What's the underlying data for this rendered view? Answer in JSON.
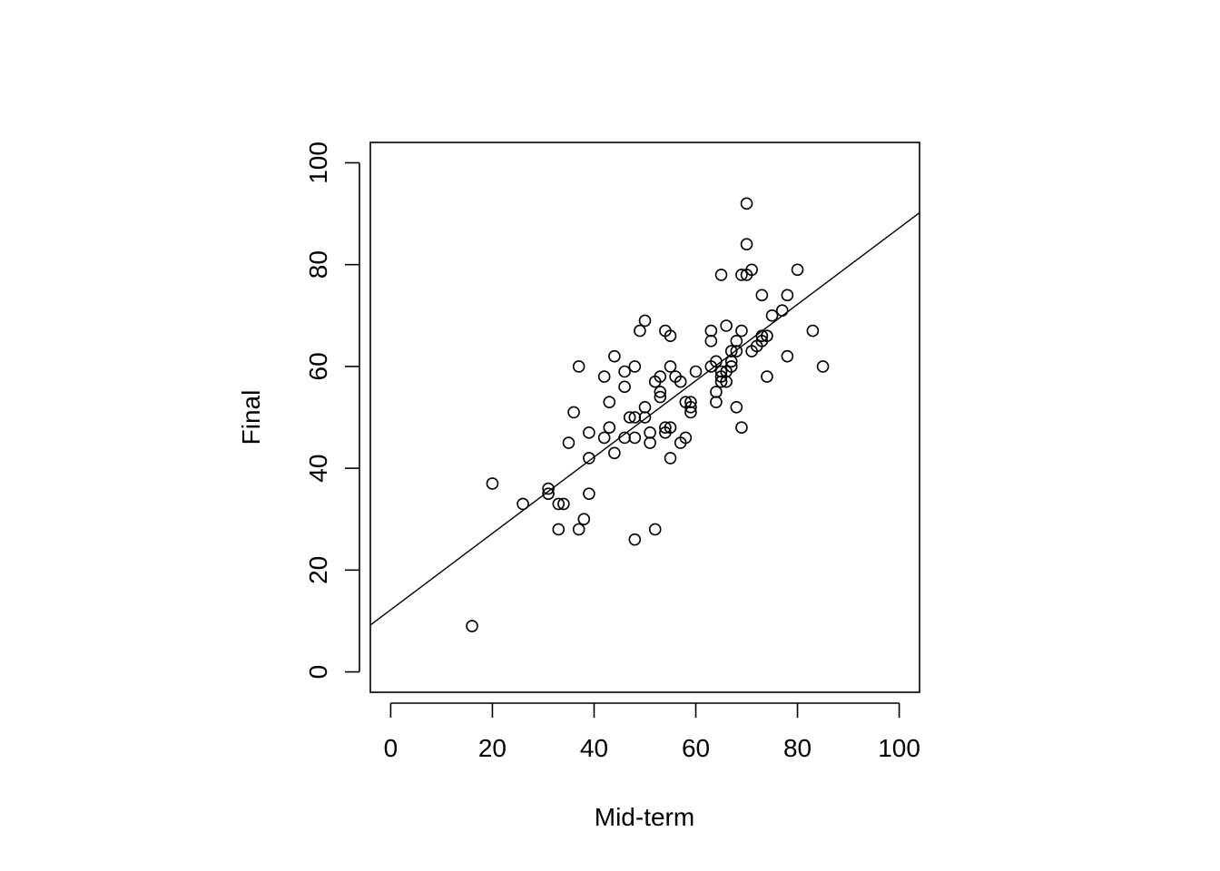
{
  "chart_data": {
    "type": "scatter",
    "title": "",
    "xlabel": "Mid-term",
    "ylabel": "Final",
    "xlim": [
      -4,
      104
    ],
    "ylim": [
      -4,
      104
    ],
    "x_ticks": [
      0,
      20,
      40,
      60,
      80,
      100
    ],
    "y_ticks": [
      0,
      20,
      40,
      60,
      80,
      100
    ],
    "x_tick_labels": [
      "0",
      "20",
      "40",
      "60",
      "80",
      "100"
    ],
    "y_tick_labels": [
      "0",
      "20",
      "40",
      "60",
      "80",
      "100"
    ],
    "grid": false,
    "marker": "open-circle",
    "color": "#000000",
    "regression_line": {
      "intercept": 12.2,
      "slope": 0.75
    },
    "points": [
      [
        16,
        9
      ],
      [
        20,
        37
      ],
      [
        26,
        33
      ],
      [
        31,
        36
      ],
      [
        31,
        35
      ],
      [
        33,
        33
      ],
      [
        33,
        28
      ],
      [
        34,
        33
      ],
      [
        35,
        45
      ],
      [
        36,
        51
      ],
      [
        37,
        60
      ],
      [
        37,
        28
      ],
      [
        38,
        30
      ],
      [
        39,
        47
      ],
      [
        39,
        42
      ],
      [
        39,
        35
      ],
      [
        42,
        58
      ],
      [
        42,
        46
      ],
      [
        43,
        53
      ],
      [
        43,
        48
      ],
      [
        44,
        62
      ],
      [
        44,
        43
      ],
      [
        46,
        59
      ],
      [
        46,
        56
      ],
      [
        46,
        46
      ],
      [
        47,
        50
      ],
      [
        48,
        60
      ],
      [
        48,
        50
      ],
      [
        48,
        46
      ],
      [
        48,
        26
      ],
      [
        49,
        67
      ],
      [
        50,
        69
      ],
      [
        50,
        52
      ],
      [
        50,
        50
      ],
      [
        51,
        47
      ],
      [
        51,
        45
      ],
      [
        52,
        57
      ],
      [
        52,
        28
      ],
      [
        53,
        58
      ],
      [
        53,
        55
      ],
      [
        53,
        54
      ],
      [
        54,
        67
      ],
      [
        54,
        48
      ],
      [
        54,
        47
      ],
      [
        55,
        66
      ],
      [
        55,
        60
      ],
      [
        55,
        48
      ],
      [
        55,
        42
      ],
      [
        56,
        58
      ],
      [
        57,
        57
      ],
      [
        57,
        45
      ],
      [
        58,
        53
      ],
      [
        58,
        46
      ],
      [
        59,
        53
      ],
      [
        59,
        52
      ],
      [
        59,
        51
      ],
      [
        60,
        59
      ],
      [
        63,
        67
      ],
      [
        63,
        65
      ],
      [
        63,
        60
      ],
      [
        64,
        61
      ],
      [
        64,
        55
      ],
      [
        64,
        53
      ],
      [
        65,
        78
      ],
      [
        65,
        59
      ],
      [
        65,
        58
      ],
      [
        65,
        57
      ],
      [
        66,
        68
      ],
      [
        66,
        59
      ],
      [
        66,
        57
      ],
      [
        67,
        63
      ],
      [
        67,
        61
      ],
      [
        67,
        60
      ],
      [
        68,
        65
      ],
      [
        68,
        63
      ],
      [
        68,
        52
      ],
      [
        69,
        78
      ],
      [
        69,
        67
      ],
      [
        69,
        48
      ],
      [
        70,
        92
      ],
      [
        70,
        84
      ],
      [
        70,
        78
      ],
      [
        71,
        79
      ],
      [
        71,
        63
      ],
      [
        72,
        64
      ],
      [
        73,
        74
      ],
      [
        73,
        66
      ],
      [
        73,
        65
      ],
      [
        74,
        66
      ],
      [
        74,
        58
      ],
      [
        75,
        70
      ],
      [
        77,
        71
      ],
      [
        78,
        74
      ],
      [
        78,
        62
      ],
      [
        80,
        79
      ],
      [
        83,
        67
      ],
      [
        85,
        60
      ]
    ]
  }
}
